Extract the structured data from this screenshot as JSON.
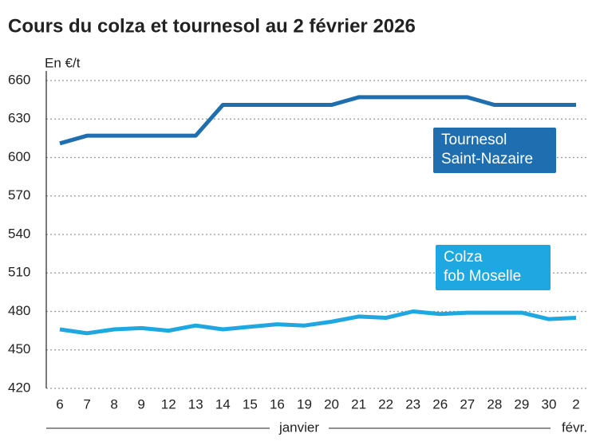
{
  "chart_data": {
    "type": "line",
    "title": "Cours du colza et tournesol au 2 février 2026",
    "y_label": "En €/t",
    "categories": [
      "6",
      "7",
      "8",
      "9",
      "12",
      "13",
      "14",
      "15",
      "16",
      "19",
      "20",
      "21",
      "22",
      "23",
      "26",
      "27",
      "28",
      "29",
      "30",
      "2"
    ],
    "months": [
      "janvier",
      "févr."
    ],
    "ylim": [
      420,
      660
    ],
    "yticks": [
      420,
      450,
      480,
      510,
      540,
      570,
      600,
      630,
      660
    ],
    "grid": true,
    "series": [
      {
        "name": [
          "Tournesol",
          "Saint-Nazaire"
        ],
        "color": "#1f6fb0",
        "values": [
          611,
          617,
          617,
          617,
          617,
          617,
          641,
          641,
          641,
          641,
          641,
          647,
          647,
          647,
          647,
          647,
          641,
          641,
          641,
          641
        ]
      },
      {
        "name": [
          "Colza",
          "fob Moselle"
        ],
        "color": "#1ea7e1",
        "values": [
          466,
          463,
          466,
          467,
          465,
          469,
          466,
          468,
          470,
          469,
          472,
          476,
          475,
          480,
          478,
          479,
          479,
          479,
          474,
          475
        ]
      }
    ]
  }
}
